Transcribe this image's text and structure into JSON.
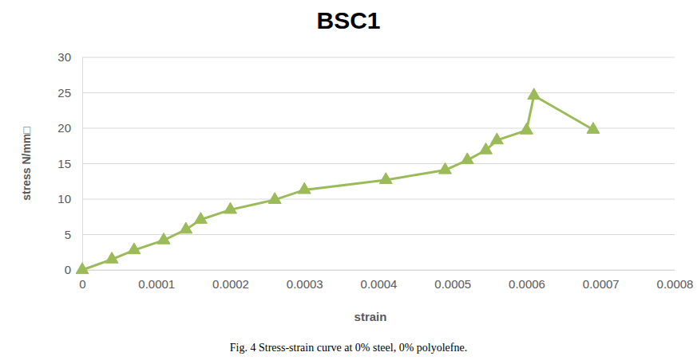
{
  "chart_data": {
    "type": "line",
    "title": "BSC1",
    "x_label": "strain",
    "y_label": "stress N/mm□",
    "caption": "Fig. 4 Stress-strain curve at 0% steel, 0% polyolefne.",
    "x": [
      0,
      4e-05,
      7e-05,
      0.00011,
      0.00014,
      0.00016,
      0.0002,
      0.00026,
      0.0003,
      0.00041,
      0.00049,
      0.00052,
      0.000545,
      0.00056,
      0.0006,
      0.00061,
      0.00069
    ],
    "values": [
      0,
      1.5,
      2.8,
      4.2,
      5.7,
      7.1,
      8.5,
      9.9,
      11.3,
      12.7,
      14.1,
      15.5,
      16.9,
      18.3,
      19.7,
      24.6,
      19.8
    ],
    "color": "#9bbb59",
    "marker": "triangle",
    "line_style": "solid",
    "xlim": [
      0,
      0.0008
    ],
    "xticks": [
      0,
      0.0001,
      0.0002,
      0.0003,
      0.0004,
      0.0005,
      0.0006,
      0.0007,
      0.0008
    ],
    "ylim": [
      0,
      30
    ],
    "yticks": [
      0,
      5,
      10,
      15,
      20,
      25,
      30
    ],
    "grid": true
  }
}
